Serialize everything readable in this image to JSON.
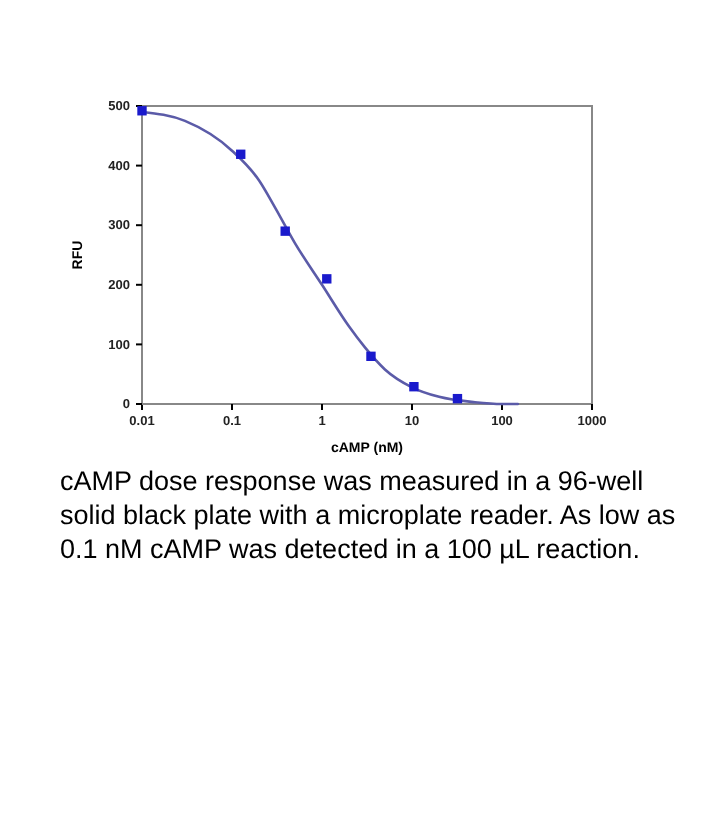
{
  "chart_data": {
    "type": "scatter",
    "xlabel": "cAMP (nM)",
    "ylabel": "RFU",
    "log": "x",
    "xlim": [
      0.01,
      1000
    ],
    "xticks": [
      0.01,
      0.1,
      1,
      10,
      100,
      1000
    ],
    "ylim": [
      0,
      500
    ],
    "yticks": [
      0,
      100,
      200,
      300,
      400,
      500
    ],
    "grid": false,
    "series": [
      {
        "type": "line",
        "marker": "none",
        "color": "#5b5ba8",
        "x": [
          0.01,
          0.03,
          0.1,
          0.2,
          0.3,
          0.5,
          1,
          2,
          3,
          5,
          10,
          20,
          50,
          100,
          150
        ],
        "values": [
          490,
          475,
          425,
          375,
          330,
          270,
          200,
          130,
          95,
          58,
          28,
          12,
          3,
          0,
          0
        ]
      },
      {
        "marker": "square",
        "color": "#1a1acc",
        "x": [
          0.01,
          0.125,
          0.39,
          1.13,
          3.5,
          10.5,
          32
        ],
        "values": [
          492,
          419,
          290,
          210,
          80,
          29,
          9
        ]
      }
    ],
    "annotations": [
      "cAMP dose response was measured in a 96-well solid black plate with a microplate reader. As low as 0.1 nM cAMP was detected in a 100 µL reaction."
    ]
  }
}
